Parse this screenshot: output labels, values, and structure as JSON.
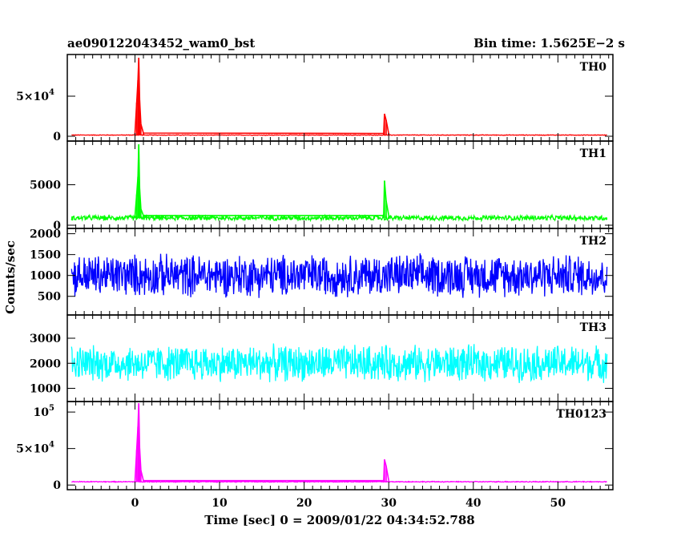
{
  "header": {
    "left_title": "ae090122043452_wam0_bst",
    "right_title": "Bin time: 1.5625E−2 s"
  },
  "ylabel": "Counts/sec",
  "xlabel": "Time [sec] 0 = 2009/01/22 04:34:52.788",
  "chart_data": [
    {
      "type": "line",
      "name": "TH0",
      "color": "#ff0000",
      "xlim": [
        -8,
        56.5
      ],
      "ylim": [
        -2000,
        98000
      ],
      "x_ticks": [
        0,
        10,
        20,
        30,
        40,
        50
      ],
      "y_ticks": [
        {
          "value": 0,
          "label": "0"
        },
        {
          "value": 50000,
          "label": "5×10",
          "exp": "4"
        }
      ],
      "baseline": 1500,
      "noise": 400,
      "data_start": -7.5,
      "data_end": 55.8,
      "x": [
        0.0,
        0.2,
        0.35,
        0.45,
        0.55,
        0.7,
        1.0,
        29.4,
        29.5,
        29.7,
        30.0
      ],
      "y": [
        5000,
        42000,
        70000,
        98000,
        45000,
        15000,
        4000,
        3500,
        28000,
        20000,
        3000
      ]
    },
    {
      "type": "line",
      "name": "TH1",
      "color": "#00ff00",
      "xlim": [
        -8,
        56.5
      ],
      "ylim": [
        0,
        10000
      ],
      "x_ticks": [
        0,
        10,
        20,
        30,
        40,
        50
      ],
      "y_ticks": [
        {
          "value": 0,
          "label": "0"
        },
        {
          "value": 5000,
          "label": "5000"
        }
      ],
      "baseline": 900,
      "noise": 350,
      "data_start": -7.5,
      "data_end": 55.8,
      "x": [
        0.0,
        0.2,
        0.35,
        0.45,
        0.55,
        0.7,
        1.0,
        29.4,
        29.5,
        29.7,
        30.0
      ],
      "y": [
        1200,
        3800,
        6000,
        10000,
        4500,
        2000,
        1200,
        1200,
        5500,
        3000,
        1200
      ]
    },
    {
      "type": "line",
      "name": "TH2",
      "color": "#0000ff",
      "xlim": [
        -8,
        56.5
      ],
      "ylim": [
        130,
        2050
      ],
      "x_ticks": [
        0,
        10,
        20,
        30,
        40,
        50
      ],
      "y_ticks": [
        {
          "value": 500,
          "label": "500"
        },
        {
          "value": 1000,
          "label": "1000"
        },
        {
          "value": 1500,
          "label": "1500"
        },
        {
          "value": 2000,
          "label": "2000"
        }
      ],
      "baseline": 1000,
      "noise": 560,
      "data_start": -7.5,
      "data_end": 55.8,
      "x": [],
      "y": []
    },
    {
      "type": "line",
      "name": "TH3",
      "color": "#00ffff",
      "xlim": [
        -8,
        56.5
      ],
      "ylim": [
        600,
        3800
      ],
      "x_ticks": [
        0,
        10,
        20,
        30,
        40,
        50
      ],
      "y_ticks": [
        {
          "value": 1000,
          "label": "1000"
        },
        {
          "value": 2000,
          "label": "2000"
        },
        {
          "value": 3000,
          "label": "3000"
        }
      ],
      "baseline": 2000,
      "noise": 800,
      "data_start": -7.5,
      "data_end": 55.8,
      "x": [],
      "y": []
    },
    {
      "type": "line",
      "name": "TH0123",
      "color": "#ff00ff",
      "xlim": [
        -8,
        56.5
      ],
      "ylim": [
        -2000,
        110000
      ],
      "x_ticks": [
        0,
        10,
        20,
        30,
        40,
        50
      ],
      "x_tick_labels": [
        "0",
        "10",
        "20",
        "30",
        "40",
        "50"
      ],
      "y_ticks": [
        {
          "value": 0,
          "label": "0"
        },
        {
          "value": 50000,
          "label": "5×10",
          "exp": "4"
        },
        {
          "value": 100000,
          "label": "10",
          "exp": "5"
        }
      ],
      "baseline": 4500,
      "noise": 700,
      "data_start": -7.5,
      "data_end": 55.8,
      "x": [
        0.0,
        0.2,
        0.35,
        0.45,
        0.55,
        0.7,
        1.0,
        29.4,
        29.5,
        29.7,
        30.0
      ],
      "y": [
        6000,
        48000,
        80000,
        112000,
        50000,
        20000,
        6000,
        6000,
        35000,
        26000,
        6000
      ]
    }
  ]
}
